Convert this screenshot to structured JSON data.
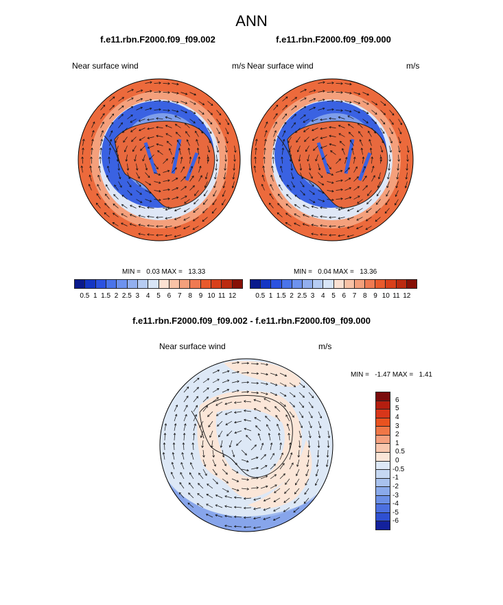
{
  "season": "ANN",
  "panels": [
    {
      "case": "f.e11.rbn.F2000.f09_f09.002",
      "variable": "Near surface wind",
      "units": "m/s",
      "min": "0.03",
      "max": "13.33"
    },
    {
      "case": "f.e11.rbn.F2000.f09_f09.000",
      "variable": "Near surface wind",
      "units": "m/s",
      "min": "0.04",
      "max": "13.36"
    }
  ],
  "diff": {
    "title": "f.e11.rbn.F2000.f09_f09.002 - f.e11.rbn.F2000.f09_f09.000",
    "variable": "Near surface wind",
    "units": "m/s",
    "min": "-1.47",
    "max": "1.41"
  },
  "minmax_labels": {
    "min": "MIN =",
    "max": "MAX ="
  },
  "abs_colorbar": {
    "ticks": [
      "0.5",
      "1",
      "1.5",
      "2",
      "2.5",
      "3",
      "4",
      "5",
      "6",
      "7",
      "8",
      "9",
      "10",
      "11",
      "12"
    ],
    "colors": [
      "#0a1a8c",
      "#1436c4",
      "#2b52e0",
      "#4a74ea",
      "#6d92ee",
      "#92afef",
      "#b6ccf3",
      "#d8e5f7",
      "#fbe1d2",
      "#f8c2a6",
      "#f4a07c",
      "#ef7a52",
      "#e85a2c",
      "#d8401a",
      "#bb2a10",
      "#861006"
    ]
  },
  "diff_colorbar": {
    "ticks": [
      "6",
      "5",
      "4",
      "3",
      "2",
      "1",
      "0.5",
      "0",
      "-0.5",
      "-1",
      "-2",
      "-3",
      "-4",
      "-5",
      "-6"
    ],
    "colors": [
      "#7a0b0b",
      "#b41e10",
      "#d8361a",
      "#e9521f",
      "#ef7747",
      "#f5a07e",
      "#f9c7ae",
      "#fbe6d8",
      "#dde8f6",
      "#c6d8f2",
      "#a8c2ee",
      "#8aaaeb",
      "#6b8fe6",
      "#4c70e0",
      "#2f50d2",
      "#13219c"
    ]
  }
}
